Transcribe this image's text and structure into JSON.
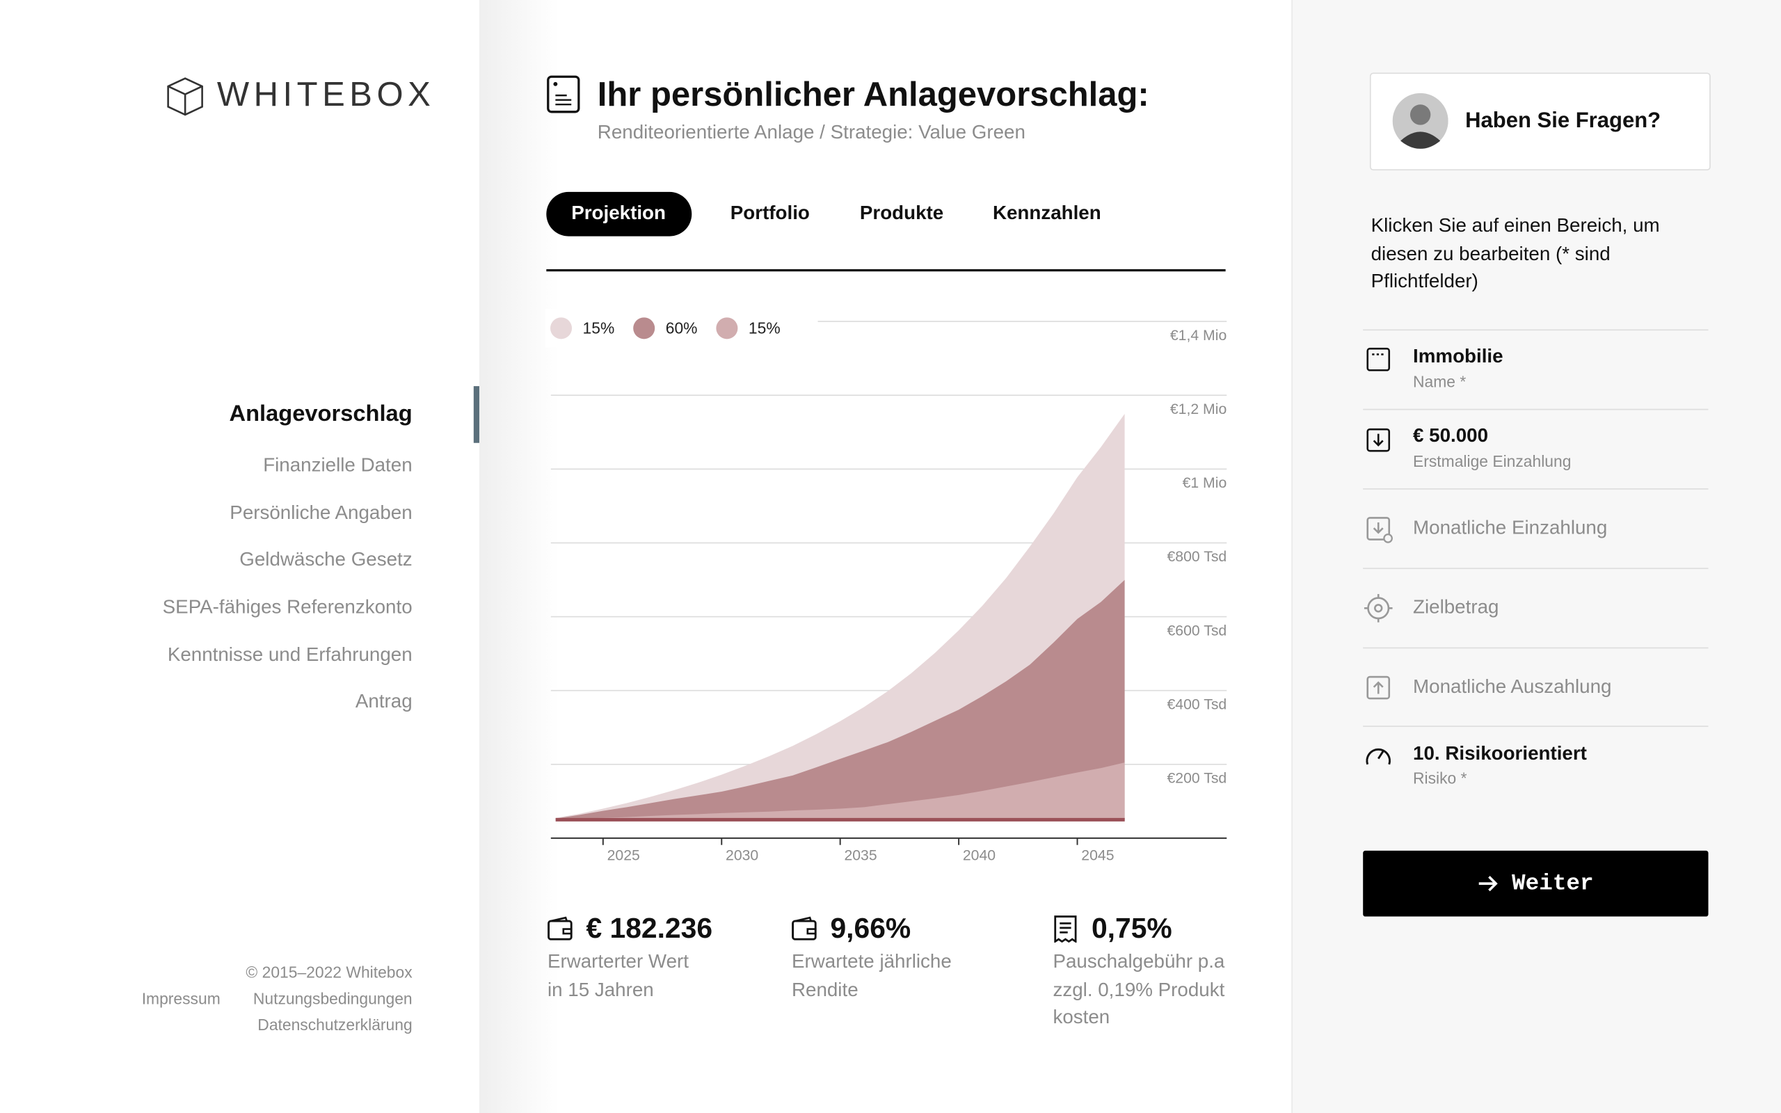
{
  "sidebar": {
    "logo": "WHITEBOX",
    "nav": [
      "Anlagevorschlag",
      "Finanzielle Daten",
      "Persönliche Angaben",
      "Geldwäsche Gesetz",
      "SEPA-fähiges Referenzkonto",
      "Kenntnisse und Erfahrungen",
      "Antrag"
    ],
    "footer": {
      "copyright": "© 2015–2022 Whitebox",
      "links": [
        "Impressum",
        "Nutzungsbedingungen",
        "Datenschutzerklärung"
      ]
    }
  },
  "header": {
    "title": "Ihr persönlicher Anlagevorschlag:",
    "subtitle": "Renditeorientierte Anlage / Strategie: Value Green"
  },
  "tabs": [
    "Projektion",
    "Portfolio",
    "Produkte",
    "Kennzahlen"
  ],
  "chart_data": {
    "type": "area",
    "x": [
      2023,
      2024,
      2025,
      2026,
      2027,
      2028,
      2029,
      2030,
      2031,
      2032,
      2033,
      2034,
      2035,
      2036,
      2037,
      2038,
      2039,
      2040,
      2041,
      2042,
      2043,
      2044,
      2045,
      2046,
      2047
    ],
    "xlim": [
      2022.8,
      2051.3
    ],
    "xticks": [
      2025,
      2030,
      2035,
      2040,
      2045
    ],
    "ylim": [
      0,
      1400000
    ],
    "yticks": [
      {
        "value": 200000,
        "label": "€200 Tsd"
      },
      {
        "value": 400000,
        "label": "€400 Tsd"
      },
      {
        "value": 600000,
        "label": "€600 Tsd"
      },
      {
        "value": 800000,
        "label": "€800 Tsd"
      },
      {
        "value": 1000000,
        "label": "€1 Mio"
      },
      {
        "value": 1200000,
        "label": "€1,2 Mio"
      },
      {
        "value": 1400000,
        "label": "€1,4 Mio"
      }
    ],
    "grid": true,
    "series": [
      {
        "name": "15%",
        "color": "#e7d7d9",
        "values": [
          55000,
          66000,
          80000,
          95000,
          112000,
          130000,
          150000,
          172000,
          196000,
          222000,
          250000,
          282000,
          317000,
          355000,
          398000,
          447000,
          502000,
          563000,
          630000,
          705000,
          790000,
          880000,
          978000,
          1060000,
          1150000
        ]
      },
      {
        "name": "60%",
        "color": "#b98b8e",
        "values": [
          53000,
          63000,
          74000,
          84000,
          95000,
          106000,
          116000,
          126000,
          140000,
          155000,
          170000,
          192000,
          215000,
          237000,
          260000,
          288000,
          318000,
          348000,
          385000,
          425000,
          470000,
          530000,
          594000,
          640000,
          700000
        ]
      },
      {
        "name": "15%",
        "color": "#d1adaf",
        "values": [
          51000,
          53000,
          55000,
          57000,
          60000,
          63000,
          65000,
          68000,
          70000,
          72000,
          75000,
          77000,
          80000,
          84000,
          92000,
          100000,
          108000,
          117000,
          128000,
          140000,
          152000,
          165000,
          178000,
          190000,
          205000
        ]
      },
      {
        "color": "#9a5057",
        "values": [
          50000,
          50000,
          50000,
          50000,
          50000,
          50000,
          50000,
          50000,
          50000,
          50000,
          50000,
          50000,
          50000,
          50000,
          50000,
          50000,
          50000,
          50000,
          50000,
          50000,
          50000,
          50000,
          50000,
          50000,
          50000
        ]
      }
    ]
  },
  "stats": [
    {
      "value": "€ 182.236",
      "label": [
        "Erwarterter Wert",
        "in 15 Jahren"
      ]
    },
    {
      "value": "9,66%",
      "label": [
        "Erwartete jährliche",
        "Rendite"
      ]
    },
    {
      "value": "0,75%",
      "label": [
        "Pauschalgebühr p.a",
        "zzgl. 0,19% Produkt",
        "kosten"
      ]
    }
  ],
  "help": {
    "title": "Haben Sie Fragen?",
    "text": "Klicken Sie auf einen Bereich, um diesen zu bearbeiten (* sind Pflichtfelder)"
  },
  "fields": [
    {
      "title": "Immobilie",
      "subtitle": "Name *"
    },
    {
      "title": "€ 50.000",
      "subtitle": "Erstmalige Einzahlung"
    },
    {
      "title": "Monatliche Einzahlung"
    },
    {
      "title": "Zielbetrag"
    },
    {
      "title": "Monatliche Auszahlung"
    },
    {
      "title": "10. Risikoorientiert",
      "subtitle": "Risiko *"
    }
  ],
  "button": "Weiter"
}
